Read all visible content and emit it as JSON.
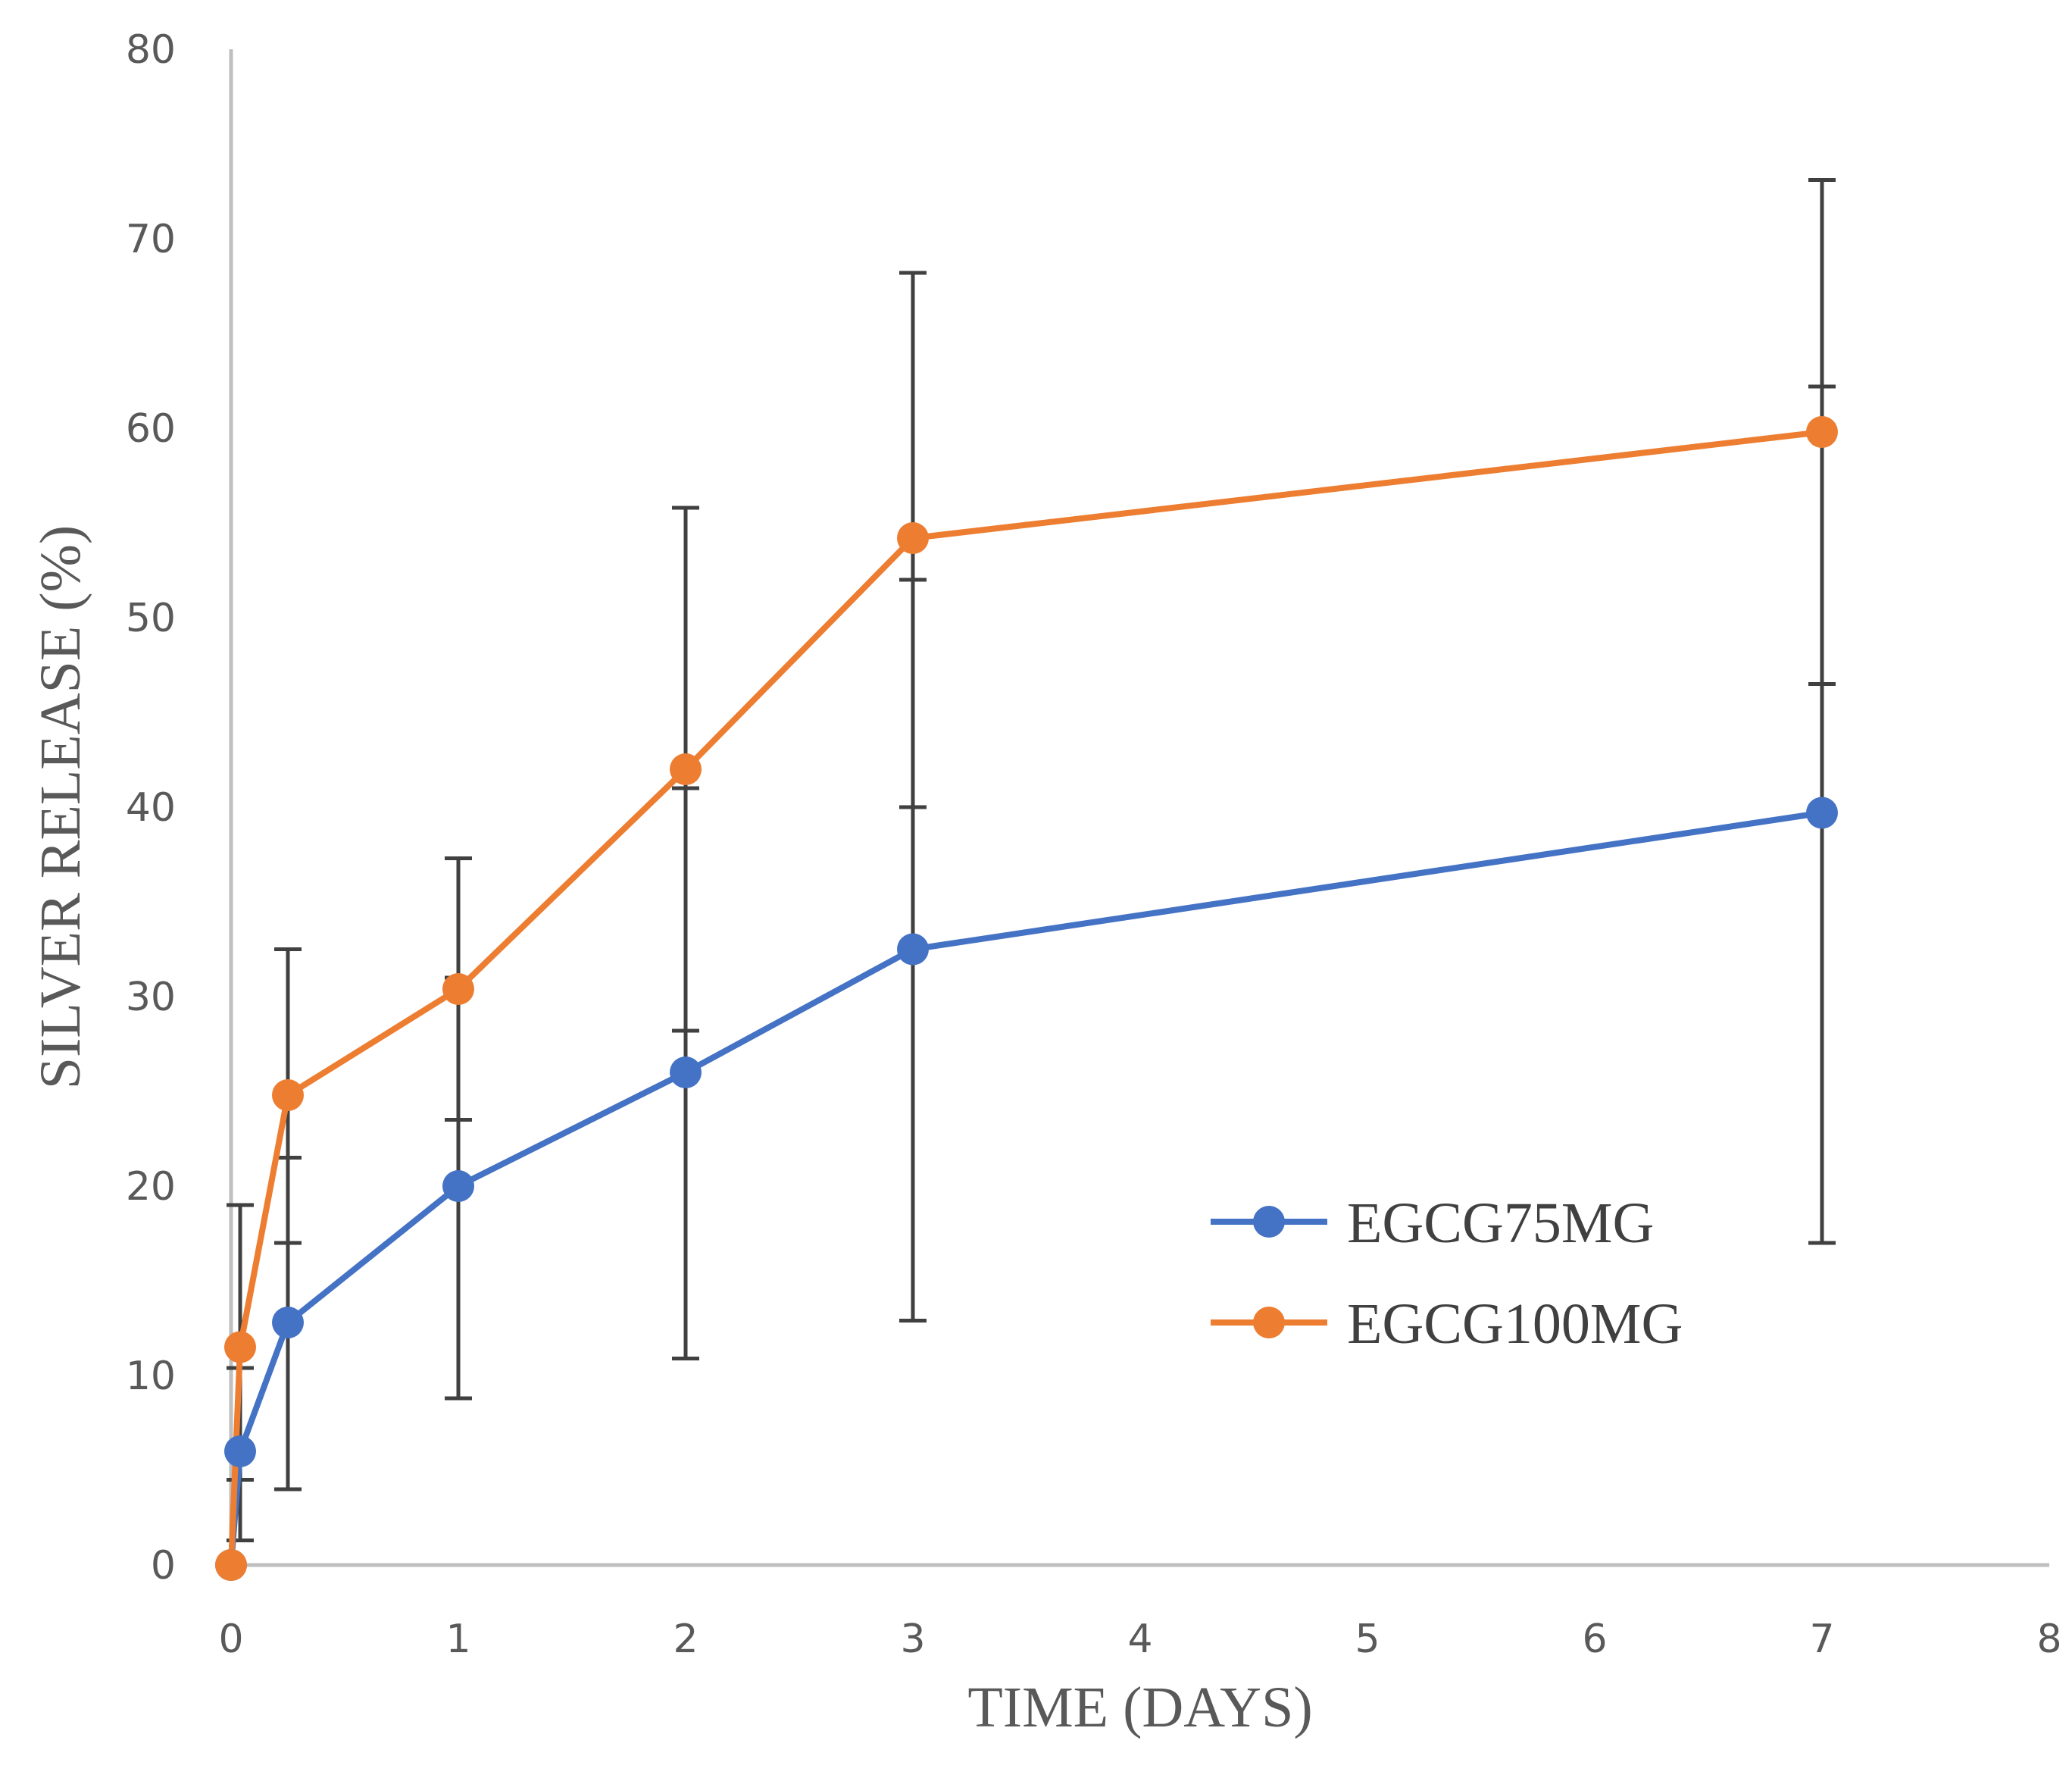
{
  "chart_data": {
    "type": "line",
    "title": "",
    "xlabel": "TIME (DAYS)",
    "ylabel": "SILVER RELEASE (%)",
    "xlim": [
      0,
      8
    ],
    "ylim": [
      0,
      80
    ],
    "xticks": [
      0,
      1,
      2,
      3,
      4,
      5,
      6,
      7,
      8
    ],
    "yticks": [
      0,
      10,
      20,
      30,
      40,
      50,
      60,
      70,
      80
    ],
    "grid": false,
    "legend_position": "lower-right",
    "series": [
      {
        "name": "EGCG75MG",
        "color": "#4472C4",
        "x": [
          0,
          0.04,
          0.25,
          1,
          2,
          3,
          7
        ],
        "y": [
          0,
          6,
          12.8,
          20,
          26,
          32.5,
          39.7
        ],
        "err_low": [
          0,
          1.3,
          4,
          8.8,
          10.9,
          12.9,
          17
        ],
        "err_high": [
          0,
          10.4,
          21.5,
          31,
          41,
          52,
          62.2
        ]
      },
      {
        "name": "EGCG100MG",
        "color": "#ED7D31",
        "x": [
          0,
          0.04,
          0.25,
          1,
          2,
          3,
          7
        ],
        "y": [
          0,
          11.5,
          24.8,
          30.4,
          42,
          54.2,
          59.8
        ],
        "err_low": [
          0,
          4.5,
          17,
          23.5,
          28.2,
          40,
          46.5
        ],
        "err_high": [
          0,
          19,
          32.5,
          37.3,
          55.8,
          68.2,
          73.1
        ]
      }
    ]
  }
}
